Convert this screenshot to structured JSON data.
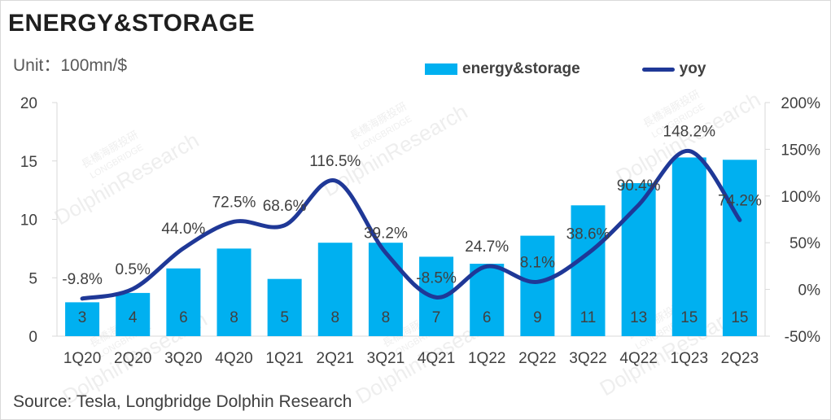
{
  "title": "ENERGY&STORAGE",
  "unit": "Unit：100mn/$",
  "source": "Source: Tesla, Longbridge Dolphin Research",
  "colors": {
    "bar": "#00b0f0",
    "line": "#1f3897",
    "text": "#404040",
    "axis": "#d9d9d9"
  },
  "chart_data": {
    "type": "bar",
    "categories": [
      "1Q20",
      "2Q20",
      "3Q20",
      "4Q20",
      "1Q21",
      "2Q21",
      "3Q21",
      "4Q21",
      "1Q22",
      "2Q22",
      "3Q22",
      "4Q22",
      "1Q23",
      "2Q23"
    ],
    "series": [
      {
        "name": "energy&storage",
        "type": "bar",
        "values": [
          2.9,
          3.7,
          5.8,
          7.5,
          4.9,
          8.0,
          8.0,
          6.8,
          6.2,
          8.6,
          11.2,
          13.1,
          15.3,
          15.1
        ],
        "labels": [
          "3",
          "4",
          "6",
          "8",
          "5",
          "8",
          "8",
          "7",
          "6",
          "9",
          "11",
          "13",
          "15",
          "15"
        ]
      },
      {
        "name": "yoy",
        "type": "line",
        "axis": "right",
        "values": [
          -9.8,
          0.5,
          44.0,
          72.5,
          68.6,
          116.5,
          39.2,
          -8.5,
          24.7,
          8.1,
          38.6,
          90.4,
          148.2,
          74.2
        ],
        "labels": [
          "-9.8%",
          "0.5%",
          "44.0%",
          "72.5%",
          "68.6%",
          "116.5%",
          "39.2%",
          "-8.5%",
          "24.7%",
          "8.1%",
          "38.6%",
          "90.4%",
          "148.2%",
          "74.2%"
        ]
      }
    ],
    "y_left": {
      "ticks": [
        "0",
        "5",
        "10",
        "15",
        "20"
      ],
      "ylim": [
        0,
        20
      ]
    },
    "y_right": {
      "ticks": [
        "-50%",
        "0%",
        "50%",
        "100%",
        "150%",
        "200%"
      ],
      "ylim": [
        -50,
        200
      ]
    },
    "legend": [
      "energy&storage",
      "yoy"
    ],
    "legend_position": "top-right",
    "grid": false
  },
  "watermark": {
    "cn": "長橋海豚投研",
    "en1": "LONGBRIDGE",
    "en2": "DolphinResearch"
  }
}
